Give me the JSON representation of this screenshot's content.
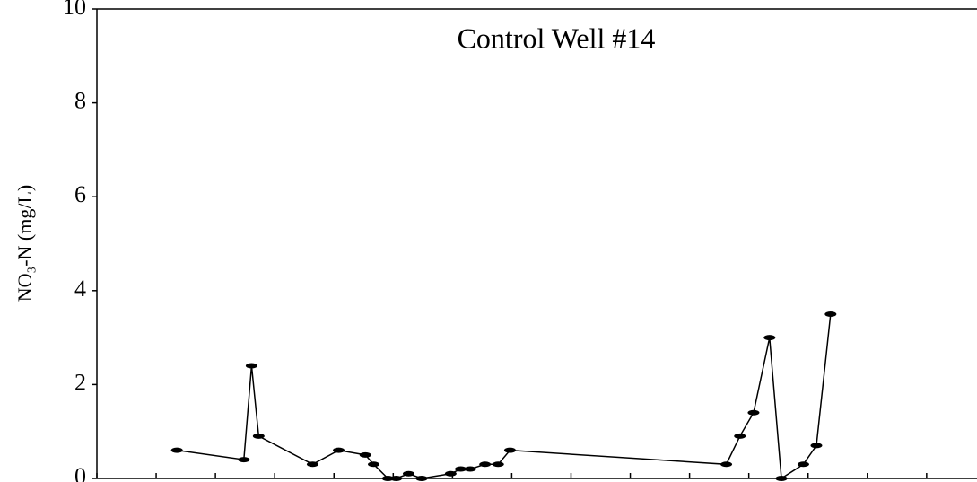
{
  "chart_data": {
    "type": "line",
    "title": "Control Well #14",
    "y_label": "NO₃-N (mg/L)",
    "ylim": [
      0,
      10
    ],
    "yticks": [
      0,
      2,
      4,
      6,
      8,
      10
    ],
    "xlim": [
      0,
      14.85
    ],
    "xticks": [
      0,
      1,
      2,
      3,
      4,
      5,
      6,
      7,
      8,
      9,
      10,
      11,
      12,
      13,
      14
    ],
    "series": [
      {
        "color": "#000000",
        "x": [
          1.35,
          2.48,
          2.61,
          2.73,
          3.64,
          4.08,
          4.53,
          4.67,
          4.91,
          5.05,
          5.26,
          5.48,
          5.97,
          6.14,
          6.3,
          6.55,
          6.77,
          6.97,
          10.62,
          10.85,
          11.08,
          11.35,
          11.55,
          11.92,
          12.14,
          12.38
        ],
        "values": [
          0.6,
          0.4,
          2.4,
          0.9,
          0.3,
          0.6,
          0.5,
          0.3,
          0,
          0,
          0.1,
          0,
          0.1,
          0.2,
          0.2,
          0.3,
          0.3,
          0.6,
          0.3,
          0.9,
          1.4,
          3.0,
          0,
          0.3,
          0.7,
          3.5
        ]
      }
    ]
  }
}
